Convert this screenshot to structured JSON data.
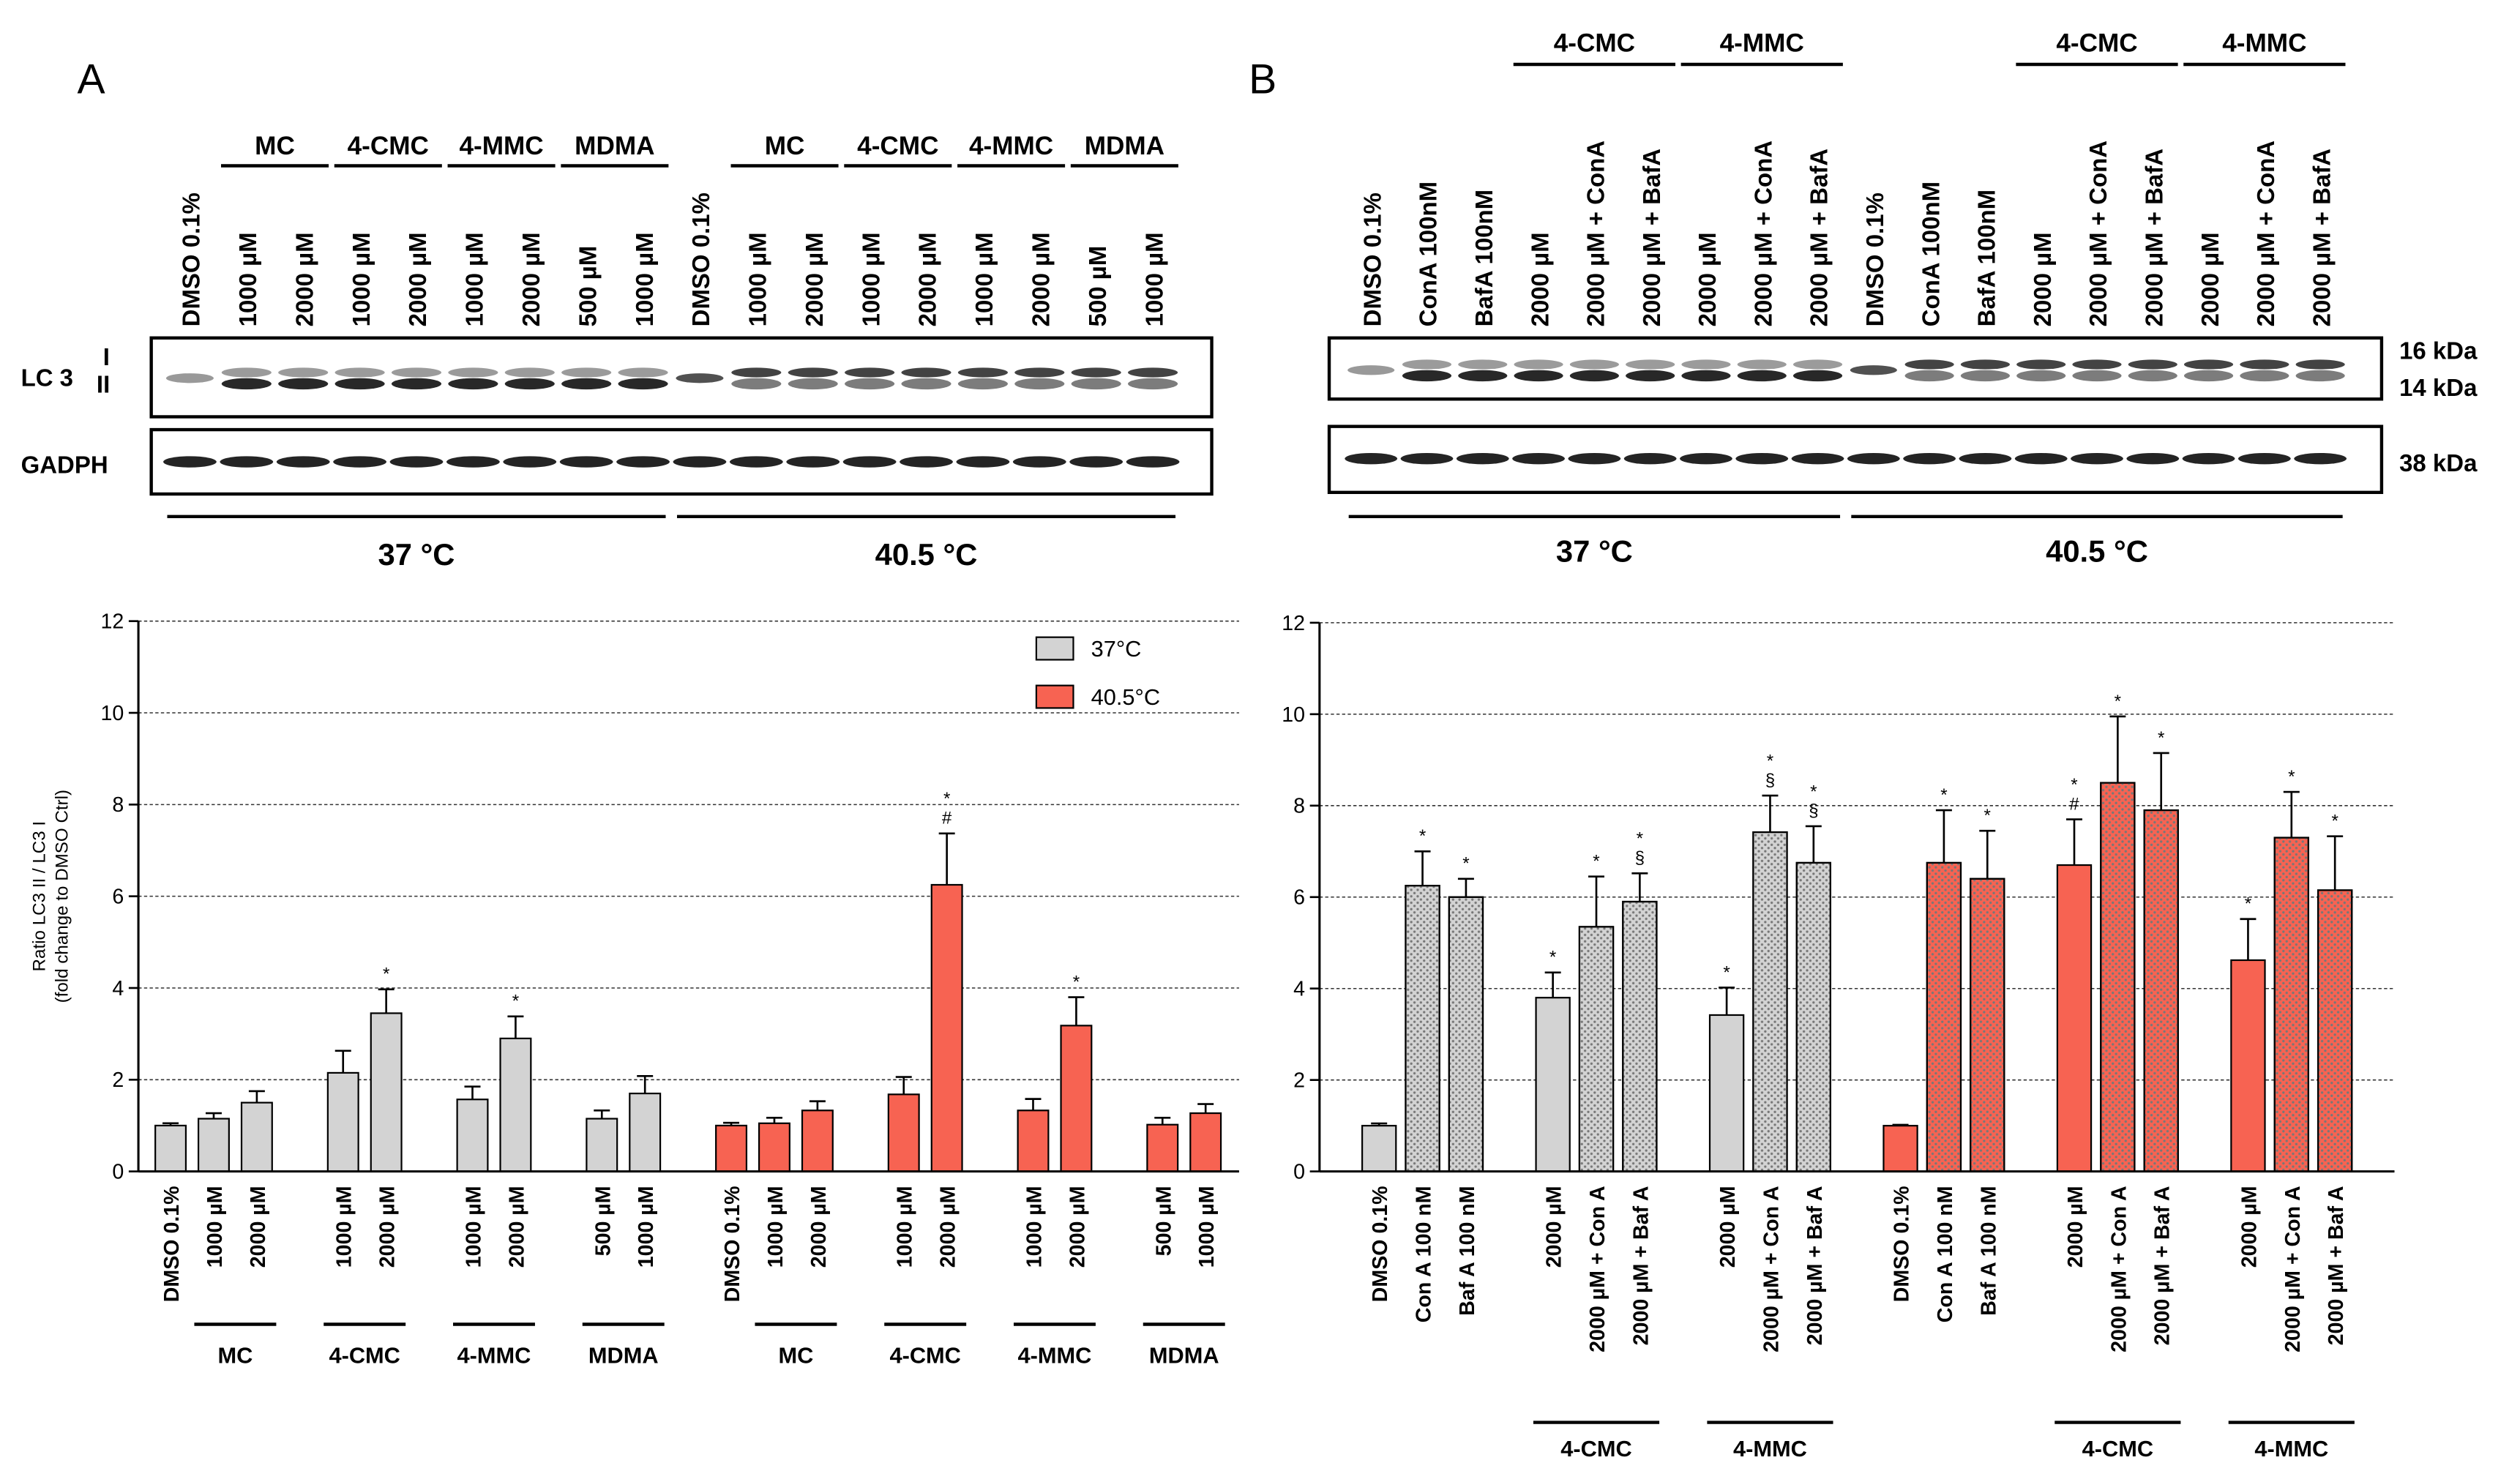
{
  "panels": {
    "a": "A",
    "b": "B"
  },
  "blot_a": {
    "lanes": [
      "DMSO 0.1%",
      "1000 µM",
      "2000 µM",
      "1000 µM",
      "2000 µM",
      "1000 µM",
      "2000 µM",
      "500 µM",
      "1000 µM",
      "DMSO 0.1%",
      "1000 µM",
      "2000 µM",
      "1000 µM",
      "2000 µM",
      "1000 µM",
      "2000 µM",
      "500 µM",
      "1000 µM"
    ],
    "groups": [
      {
        "label": "MC",
        "lanes": [
          1,
          2
        ]
      },
      {
        "label": "4-CMC",
        "lanes": [
          3,
          4
        ]
      },
      {
        "label": "4-MMC",
        "lanes": [
          5,
          6
        ]
      },
      {
        "label": "MDMA",
        "lanes": [
          7,
          8
        ]
      },
      {
        "label": "MC",
        "lanes": [
          10,
          11
        ]
      },
      {
        "label": "4-CMC",
        "lanes": [
          12,
          13
        ]
      },
      {
        "label": "4-MMC",
        "lanes": [
          14,
          15
        ]
      },
      {
        "label": "MDMA",
        "lanes": [
          16,
          17
        ]
      }
    ],
    "row_labels": {
      "lc3": "LC 3",
      "band_i": "I",
      "band_ii": "II",
      "gapdh": "GADPH"
    },
    "temps": [
      {
        "label": "37 °C",
        "lanes": [
          0,
          8
        ]
      },
      {
        "label": "40.5 °C",
        "lanes": [
          9,
          17
        ]
      }
    ]
  },
  "blot_b": {
    "lanes": [
      "DMSO 0.1%",
      "ConA 100nM",
      "BafA 100nM",
      "2000 µM",
      "2000 µM + ConA",
      "2000 µM + BafA",
      "2000 µM",
      "2000 µM + ConA",
      "2000 µM + BafA",
      "DMSO 0.1%",
      "ConA 100nM",
      "BafA 100nM",
      "2000 µM",
      "2000 µM + ConA",
      "2000 µM + BafA",
      "2000 µM",
      "2000 µM + ConA",
      "2000 µM + BafA"
    ],
    "groups": [
      {
        "label": "4-CMC",
        "lanes": [
          3,
          5
        ]
      },
      {
        "label": "4-MMC",
        "lanes": [
          6,
          8
        ]
      },
      {
        "label": "4-CMC",
        "lanes": [
          12,
          14
        ]
      },
      {
        "label": "4-MMC",
        "lanes": [
          15,
          17
        ]
      }
    ],
    "markers": {
      "kda16": "16 kDa",
      "kda14": "14 kDa",
      "kda38": "38 kDa"
    },
    "temps": [
      {
        "label": "37 °C",
        "lanes": [
          0,
          8
        ]
      },
      {
        "label": "40.5 °C",
        "lanes": [
          9,
          17
        ]
      }
    ]
  },
  "chart_data": [
    {
      "type": "bar",
      "panel": "A",
      "ylabel": "Ratio LC3 II / LC3 I\n(fold change to DMSO Ctrl)",
      "ylim": [
        0,
        12
      ],
      "yticks": [
        0,
        2,
        4,
        6,
        8,
        10,
        12
      ],
      "grid": true,
      "legend_position": "top-right",
      "series": [
        {
          "name": "37°C",
          "color": "#d3d3d3"
        },
        {
          "name": "40.5°C",
          "color": "#f76352"
        }
      ],
      "categories": [
        "DMSO 0.1%",
        "1000 µM",
        "2000 µM",
        "1000 µM",
        "2000 µM",
        "1000 µM",
        "2000 µM",
        "500 µM",
        "1000 µM",
        "DMSO 0.1%",
        "1000 µM",
        "2000 µM",
        "1000 µM",
        "2000 µM",
        "1000 µM",
        "2000 µM",
        "500 µM",
        "1000 µM"
      ],
      "slot": [
        0,
        1,
        2,
        4,
        5,
        7,
        8,
        10,
        11,
        13,
        14,
        15,
        17,
        18,
        20,
        21,
        23,
        24
      ],
      "group_series": [
        0,
        0,
        0,
        0,
        0,
        0,
        0,
        0,
        0,
        1,
        1,
        1,
        1,
        1,
        1,
        1,
        1,
        1
      ],
      "values": [
        1.0,
        1.15,
        1.5,
        2.15,
        3.45,
        1.57,
        2.9,
        1.15,
        1.7,
        1.0,
        1.05,
        1.33,
        1.68,
        6.25,
        1.33,
        3.18,
        1.02,
        1.27
      ],
      "errors": [
        0.05,
        0.12,
        0.25,
        0.48,
        0.52,
        0.28,
        0.48,
        0.18,
        0.38,
        0.06,
        0.12,
        0.2,
        0.38,
        1.12,
        0.25,
        0.62,
        0.15,
        0.2
      ],
      "annotations": [
        "",
        "",
        "",
        "",
        "*",
        "",
        "*",
        "",
        "",
        "",
        "",
        "",
        "",
        "*\n#",
        "",
        "*",
        "",
        ""
      ],
      "groups": [
        {
          "label": "MC",
          "slots": [
            1,
            2
          ]
        },
        {
          "label": "4-CMC",
          "slots": [
            4,
            5
          ]
        },
        {
          "label": "4-MMC",
          "slots": [
            7,
            8
          ]
        },
        {
          "label": "MDMA",
          "slots": [
            10,
            11
          ]
        },
        {
          "label": "MC",
          "slots": [
            14,
            15
          ]
        },
        {
          "label": "4-CMC",
          "slots": [
            17,
            18
          ]
        },
        {
          "label": "4-MMC",
          "slots": [
            20,
            21
          ]
        },
        {
          "label": "MDMA",
          "slots": [
            23,
            24
          ]
        }
      ]
    },
    {
      "type": "bar",
      "panel": "B",
      "ylim": [
        0,
        12
      ],
      "yticks": [
        0,
        2,
        4,
        6,
        8,
        10,
        12
      ],
      "grid": true,
      "categories": [
        "DMSO 0.1%",
        "Con A 100 nM",
        "Baf A 100 nM",
        "2000 µM",
        "2000 µM + Con A",
        "2000 µM + Baf A",
        "2000 µM",
        "2000 µM + Con A",
        "2000 µM + Baf A",
        "DMSO 0.1%",
        "Con A 100 nM",
        "Baf A 100 nM",
        "2000 µM",
        "2000 µM + Con A",
        "2000 µM + Baf A",
        "2000 µM",
        "2000 µM + Con A",
        "2000 µM + Baf A"
      ],
      "slot": [
        0,
        1,
        2,
        4,
        5,
        6,
        8,
        9,
        10,
        12,
        13,
        14,
        16,
        17,
        18,
        20,
        21,
        22
      ],
      "group_series": [
        0,
        0,
        0,
        0,
        0,
        0,
        0,
        0,
        0,
        1,
        1,
        1,
        1,
        1,
        1,
        1,
        1,
        1
      ],
      "patterned": [
        false,
        true,
        true,
        false,
        true,
        true,
        false,
        true,
        true,
        false,
        true,
        true,
        false,
        true,
        true,
        false,
        true,
        true
      ],
      "values": [
        1.0,
        6.25,
        6.0,
        3.8,
        5.35,
        5.9,
        3.42,
        7.42,
        6.75,
        1.0,
        6.75,
        6.4,
        6.7,
        8.5,
        7.9,
        4.62,
        7.3,
        6.15
      ],
      "errors": [
        0.05,
        0.75,
        0.4,
        0.55,
        1.1,
        0.62,
        0.6,
        0.8,
        0.8,
        0.02,
        1.15,
        1.05,
        1.0,
        1.45,
        1.25,
        0.9,
        1.0,
        1.18
      ],
      "annotations": [
        "",
        "*",
        "*",
        "*",
        "*",
        "*\n§",
        "*",
        "*\n§",
        "*\n§",
        "",
        "*",
        "*",
        "*\n#",
        "*",
        "*",
        "*",
        "*",
        "*"
      ],
      "groups": [
        {
          "label": "4-CMC",
          "slots": [
            4,
            6
          ]
        },
        {
          "label": "4-MMC",
          "slots": [
            8,
            10
          ]
        },
        {
          "label": "4-CMC",
          "slots": [
            16,
            18
          ]
        },
        {
          "label": "4-MMC",
          "slots": [
            20,
            22
          ]
        }
      ]
    }
  ]
}
